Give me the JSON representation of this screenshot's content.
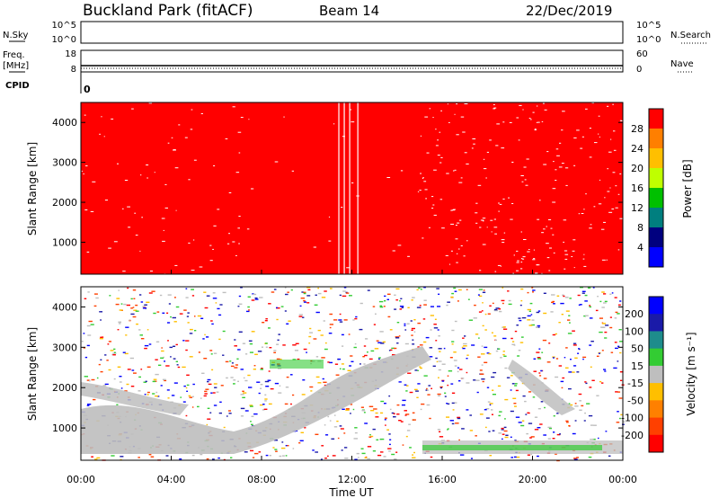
{
  "header": {
    "station": "Buckland Park (fitACF)",
    "beam": "Beam 14",
    "date": "22/Dec/2019"
  },
  "panels": {
    "nsky": {
      "left_label": "N.Sky",
      "left_ticks": [
        "10^5",
        "10^0"
      ],
      "right_label": "N.Search",
      "right_ticks": [
        "10^5",
        "10^0"
      ]
    },
    "freq": {
      "left_label_1": "Freq.",
      "left_label_2": "[MHz]",
      "left_ticks": [
        "18",
        "8"
      ],
      "right_label": "Nave",
      "right_ticks": [
        "60",
        "0"
      ]
    },
    "cpid": {
      "label": "CPID",
      "value": "0"
    }
  },
  "colors": {
    "red": "#ff0000",
    "grey": "#bebebe",
    "blue": "#0000ff",
    "green": "#33cc33"
  },
  "chart_data": [
    {
      "type": "heatmap",
      "title": "",
      "xlabel": "Time UT",
      "ylabel": "Slant Range [km]",
      "xticks": [
        "00:00",
        "04:00",
        "08:00",
        "12:00",
        "16:00",
        "20:00",
        "00:00"
      ],
      "yticks": [
        1000,
        2000,
        3000,
        4000
      ],
      "ylim": [
        200,
        4500
      ],
      "colorbar": {
        "label": "Power [dB]",
        "ticks": [
          "28",
          "24",
          "20",
          "16",
          "12",
          "8",
          "4"
        ],
        "colors": [
          "#ff0000",
          "#ff7f00",
          "#ffbf00",
          "#bfff00",
          "#00c000",
          "#007f7f",
          "#00007f",
          "#0000ff"
        ]
      },
      "dominant_value": "Power ≈ 28+ dB (red) across 00:00–24:00, 200–4500 km"
    },
    {
      "type": "heatmap",
      "title": "",
      "xlabel": "Time UT",
      "ylabel": "Slant Range [km]",
      "xticks": [
        "00:00",
        "04:00",
        "08:00",
        "12:00",
        "16:00",
        "20:00",
        "00:00"
      ],
      "yticks": [
        1000,
        2000,
        3000,
        4000
      ],
      "ylim": [
        200,
        4500
      ],
      "colorbar": {
        "label": "Velocity [m s⁻¹]",
        "ticks": [
          "200",
          "100",
          "50",
          "15",
          "-15",
          "-50",
          "-100",
          "-200"
        ],
        "colors": [
          "#0000ff",
          "#1a1aa8",
          "#1e8c8c",
          "#33cc33",
          "#bebebe",
          "#ffbf00",
          "#ff8000",
          "#ff4000",
          "#ff0000"
        ]
      },
      "dominant_value": "Mixed velocities; ground scatter (grey) at low ranges"
    }
  ]
}
